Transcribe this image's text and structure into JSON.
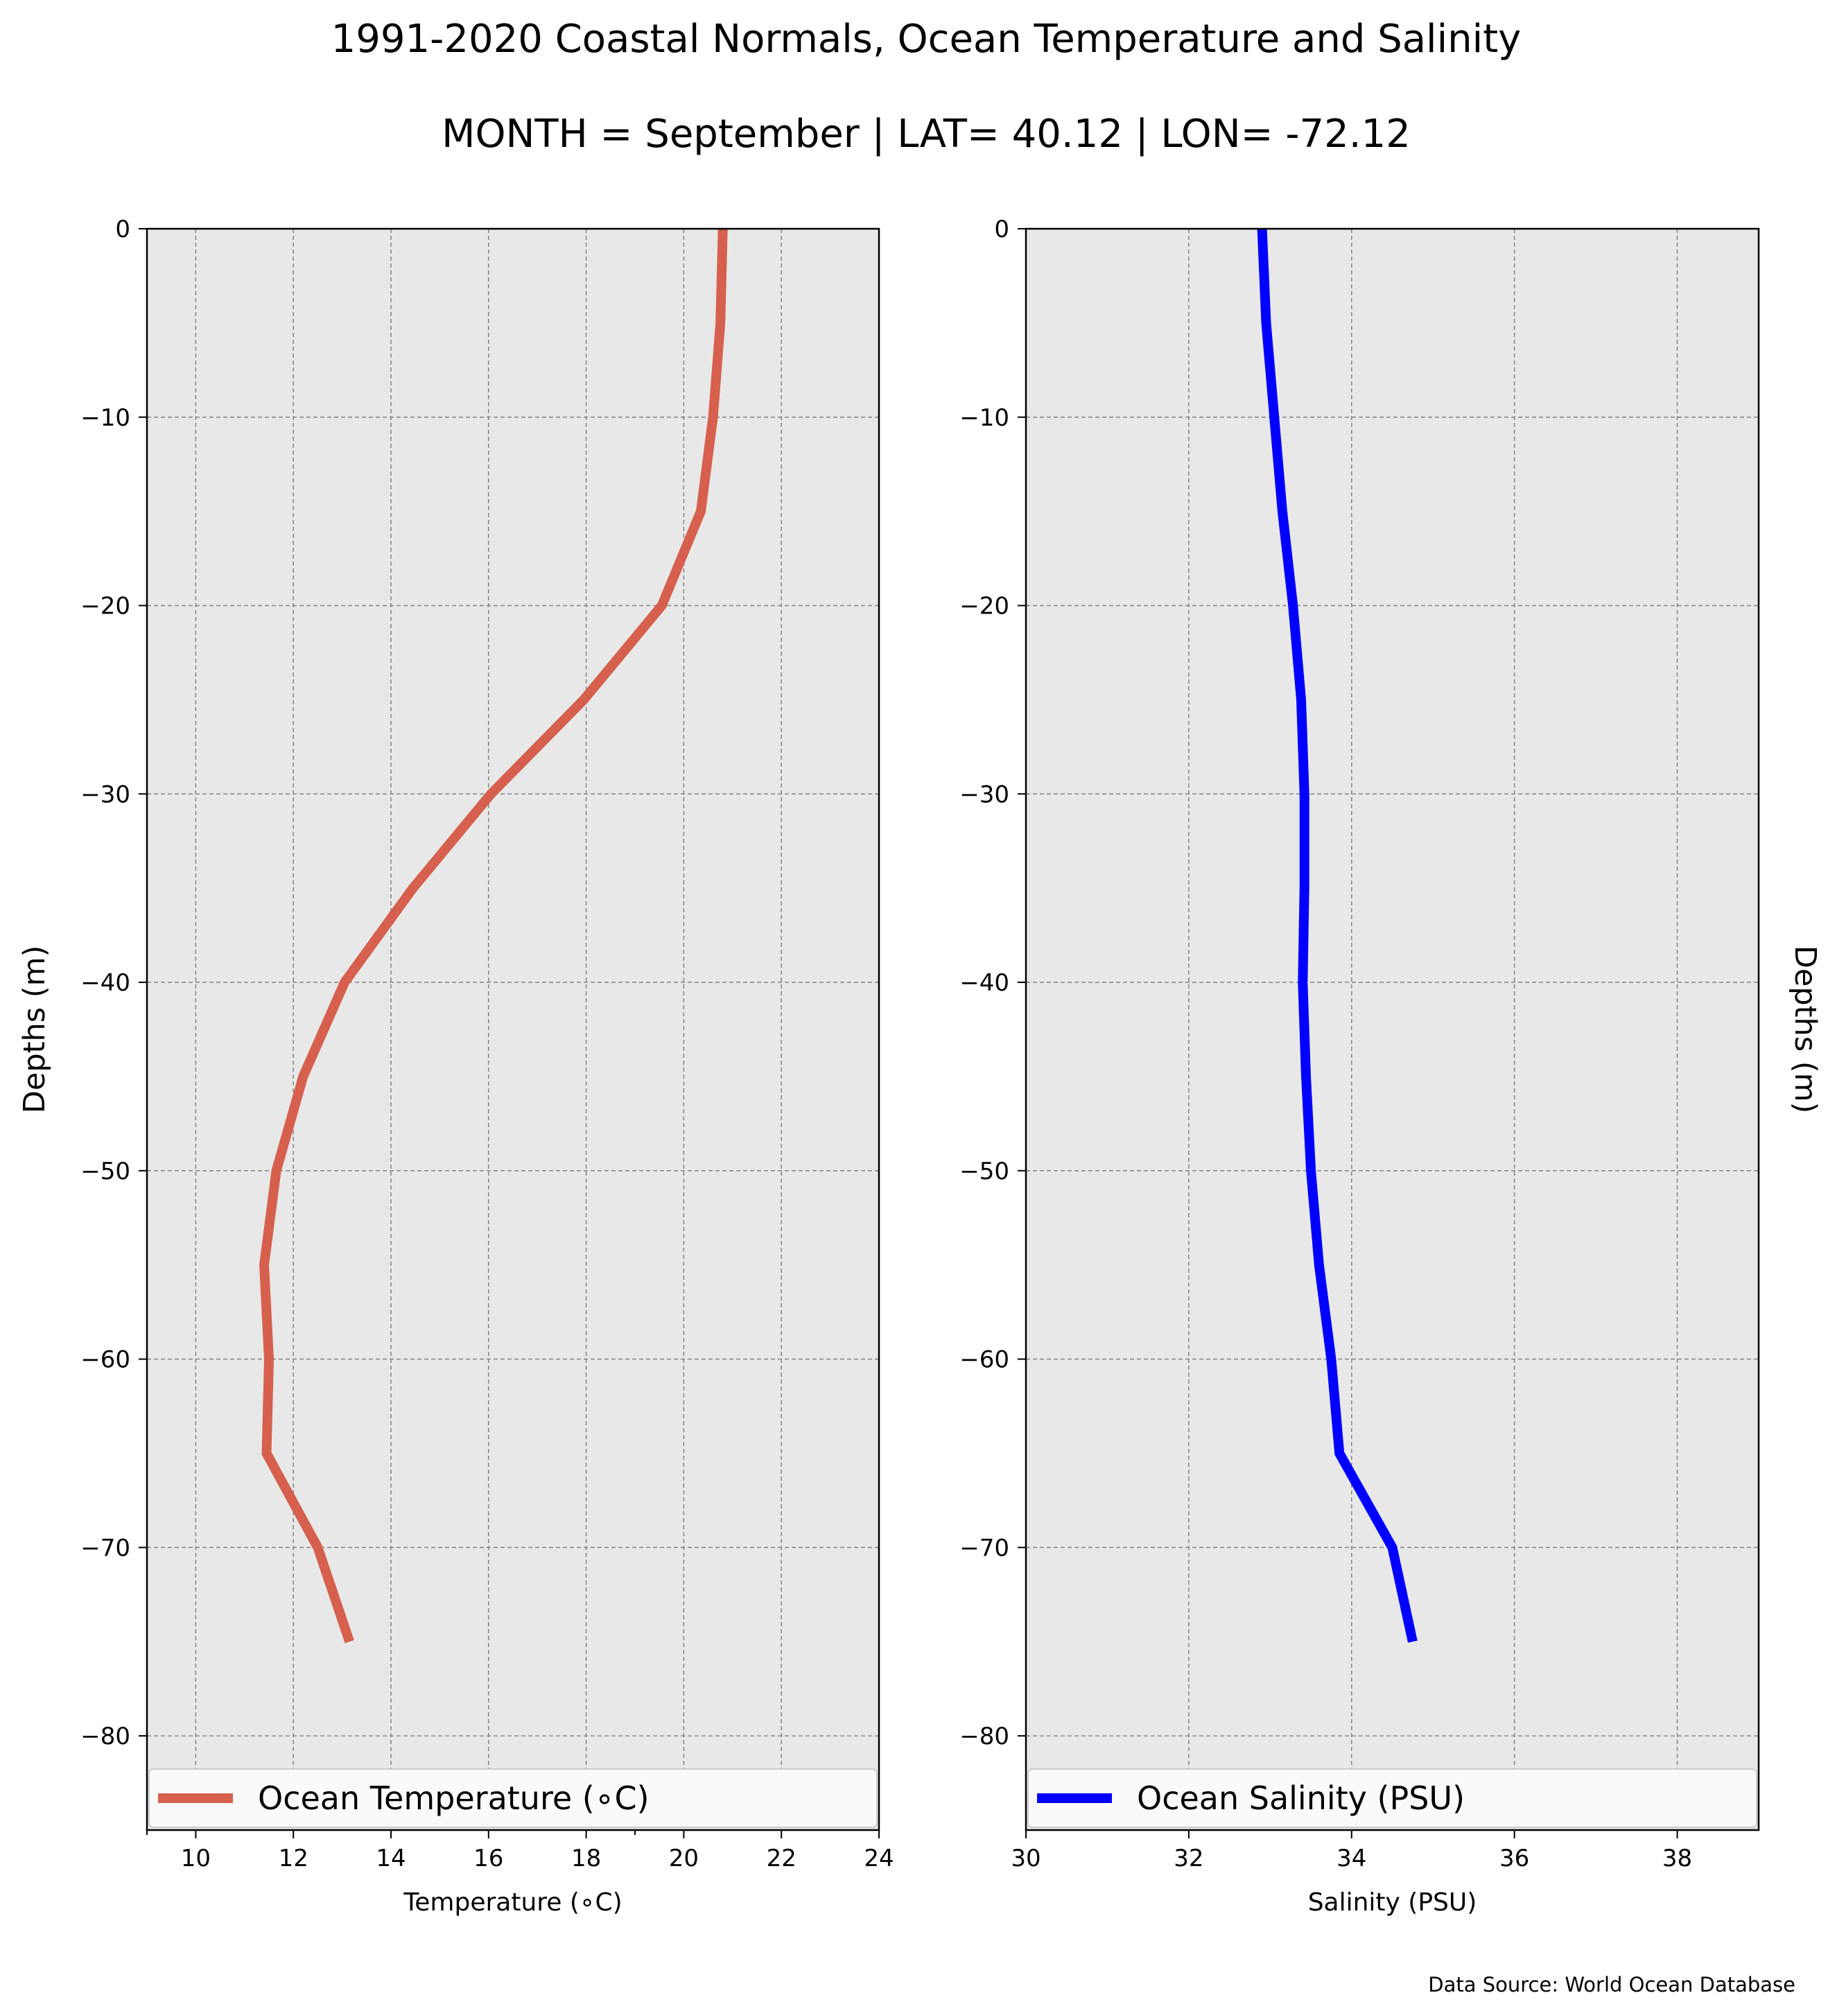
{
  "title": "1991-2020 Coastal Normals, Ocean Temperature and Salinity",
  "subtitle": "MONTH = September | LAT= 40.12 | LON= -72.12",
  "footer": "Data Source: World Ocean Database",
  "chart_data": [
    {
      "type": "line",
      "xlabel": "Temperature (∘C)",
      "ylabel": "Depths (m)",
      "xlim": [
        9,
        24
      ],
      "ylim": [
        -85,
        0
      ],
      "xticks": [
        10,
        12,
        14,
        16,
        18,
        20,
        22,
        24
      ],
      "xtick_labels": [
        "10",
        "12",
        "14",
        "16",
        "18",
        "20",
        "22",
        "24"
      ],
      "yticks": [
        0,
        -10,
        -20,
        -30,
        -40,
        -50,
        -60,
        -70,
        -80
      ],
      "ytick_labels": [
        "0",
        "−10",
        "−20",
        "−30",
        "−40",
        "−50",
        "−60",
        "−70",
        "−80"
      ],
      "grid": true,
      "legend": "bottom",
      "series": [
        {
          "name": "Ocean Temperature (∘C)",
          "color": "#d6604d",
          "x": [
            20.8,
            20.75,
            20.6,
            20.35,
            19.55,
            17.95,
            16.05,
            14.45,
            13.05,
            12.2,
            11.65,
            11.4,
            11.5,
            11.45,
            12.5,
            13.15
          ],
          "y": [
            0,
            -5,
            -10,
            -15,
            -20,
            -25,
            -30,
            -35,
            -40,
            -45,
            -50,
            -55,
            -60,
            -65,
            -70,
            -75
          ]
        }
      ]
    },
    {
      "type": "line",
      "xlabel": "Salinity (PSU)",
      "ylabel": "Depths (m)",
      "xlim": [
        30,
        39
      ],
      "ylim": [
        -85,
        0
      ],
      "xticks": [
        30,
        32,
        34,
        36,
        38
      ],
      "xtick_labels": [
        "30",
        "32",
        "34",
        "36",
        "38"
      ],
      "yticks": [
        0,
        -10,
        -20,
        -30,
        -40,
        -50,
        -60,
        -70,
        -80
      ],
      "ytick_labels": [
        "0",
        "−10",
        "−20",
        "−30",
        "−40",
        "−50",
        "−60",
        "−70",
        "−80"
      ],
      "grid": true,
      "legend": "bottom",
      "series": [
        {
          "name": "Ocean Salinity (PSU)",
          "color": "#0000ff",
          "x": [
            32.9,
            32.95,
            33.05,
            33.15,
            33.28,
            33.38,
            33.42,
            33.42,
            33.4,
            33.44,
            33.5,
            33.6,
            33.75,
            33.85,
            34.5,
            34.75
          ],
          "y": [
            0,
            -5,
            -10,
            -15,
            -20,
            -25,
            -30,
            -35,
            -40,
            -45,
            -50,
            -55,
            -60,
            -65,
            -70,
            -75
          ]
        }
      ]
    }
  ]
}
